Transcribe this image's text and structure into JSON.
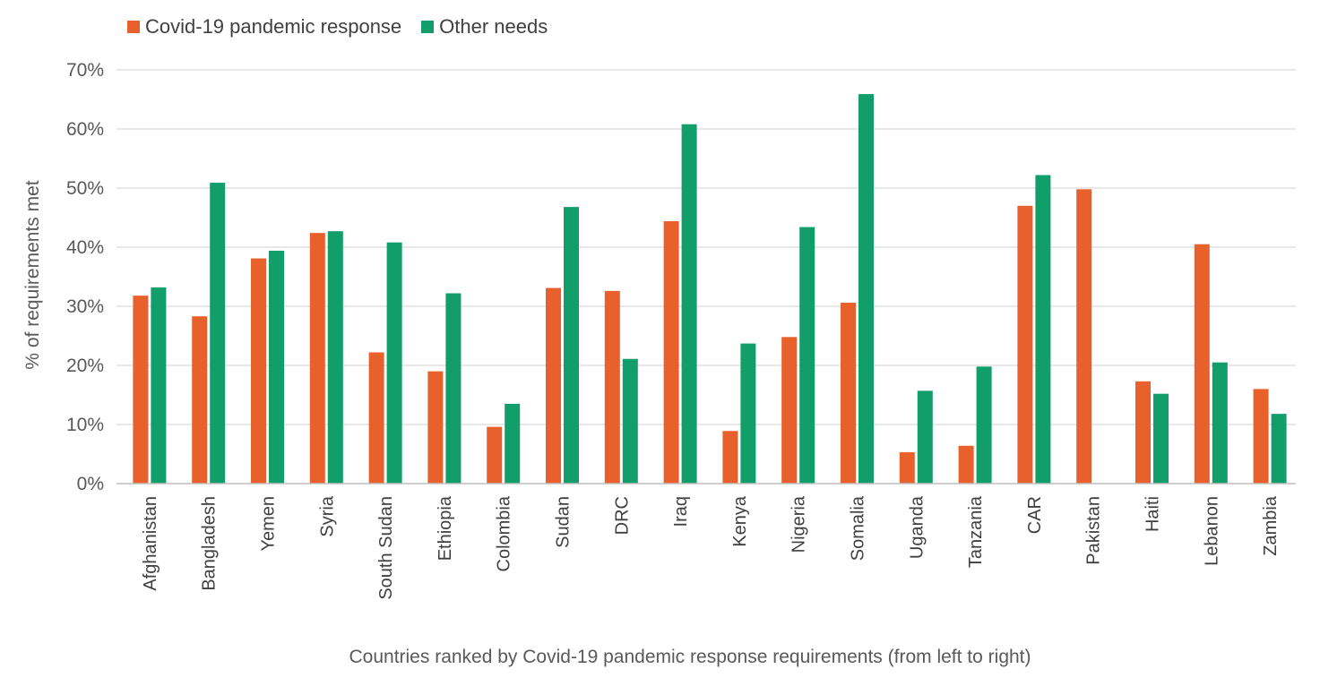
{
  "chart_data": {
    "type": "bar",
    "title": "",
    "xlabel": "Countries ranked by Covid-19 pandemic response requirements (from left to right)",
    "ylabel": "% of requirements met",
    "ylim": [
      0,
      70
    ],
    "yticks": [
      "0%",
      "10%",
      "20%",
      "30%",
      "40%",
      "50%",
      "60%",
      "70%"
    ],
    "ytick_values": [
      0,
      10,
      20,
      30,
      40,
      50,
      60,
      70
    ],
    "grid": true,
    "legend_position": "top-left",
    "categories": [
      "Afghanistan",
      "Bangladesh",
      "Yemen",
      "Syria",
      "South Sudan",
      "Ethiopia",
      "Colombia",
      "Sudan",
      "DRC",
      "Iraq",
      "Kenya",
      "Nigeria",
      "Somalia",
      "Uganda",
      "Tanzania",
      "CAR",
      "Pakistan",
      "Haiti",
      "Lebanon",
      "Zambia"
    ],
    "series": [
      {
        "name": "Covid-19 pandemic response",
        "color": "#E8612C",
        "values": [
          31.8,
          28.3,
          38.1,
          42.4,
          22.2,
          19.0,
          9.6,
          33.1,
          32.6,
          44.4,
          8.9,
          24.8,
          30.6,
          5.3,
          6.4,
          47.0,
          49.8,
          17.3,
          40.5,
          16.0
        ]
      },
      {
        "name": "Other needs",
        "color": "#129E6B",
        "values": [
          33.2,
          50.9,
          39.4,
          42.7,
          40.8,
          32.2,
          13.5,
          46.8,
          21.1,
          60.8,
          23.7,
          43.4,
          65.9,
          15.7,
          19.8,
          52.2,
          null,
          15.2,
          20.5,
          11.8
        ]
      }
    ]
  }
}
